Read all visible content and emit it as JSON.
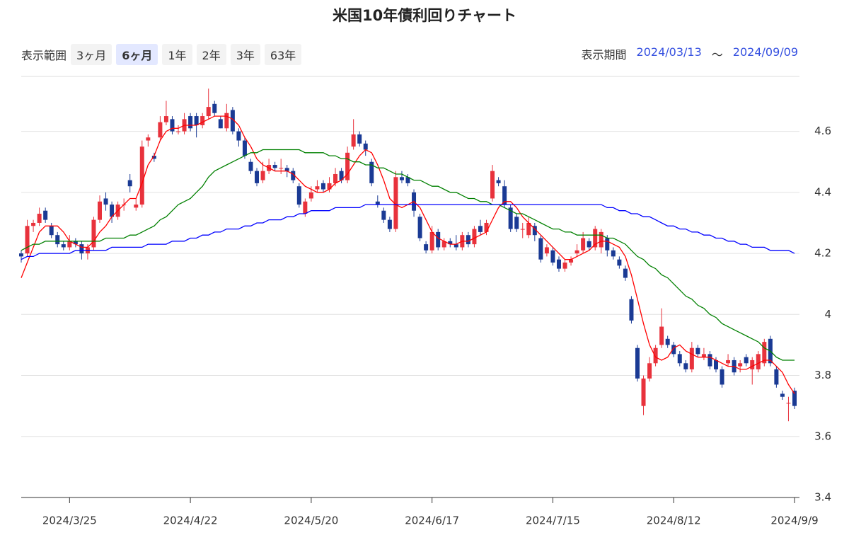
{
  "controls": {
    "range_label": "表示範囲",
    "ranges": [
      "3ヶ月",
      "6ヶ月",
      "1年",
      "2年",
      "3年",
      "63年"
    ],
    "active_range": 1,
    "period_label": "表示期間",
    "start": "2024/03/13",
    "separator": "～",
    "end": "2024/09/09"
  },
  "chart_data": {
    "type": "candlestick",
    "title": "米国10年債利回りチャート",
    "up_color": "#e8323c",
    "down_color": "#1a3a94",
    "ylim": [
      3.4,
      4.78
    ],
    "yticks": [
      3.4,
      3.6,
      3.8,
      4,
      4.2,
      4.4,
      4.6
    ],
    "grid": true,
    "categories": [
      null,
      null,
      null,
      null,
      null,
      null,
      null,
      null,
      "2024/3/25",
      null,
      null,
      null,
      null,
      null,
      null,
      null,
      null,
      null,
      null,
      null,
      null,
      null,
      null,
      null,
      null,
      null,
      null,
      null,
      "2024/4/22",
      null,
      null,
      null,
      null,
      null,
      null,
      null,
      null,
      null,
      null,
      null,
      null,
      null,
      null,
      null,
      null,
      null,
      null,
      null,
      "2024/5/20",
      null,
      null,
      null,
      null,
      null,
      null,
      null,
      null,
      null,
      null,
      null,
      null,
      null,
      null,
      null,
      null,
      null,
      null,
      null,
      "2024/6/17",
      null,
      null,
      null,
      null,
      null,
      null,
      null,
      null,
      null,
      null,
      null,
      null,
      null,
      null,
      null,
      null,
      null,
      null,
      null,
      "2024/7/15",
      null,
      null,
      null,
      null,
      null,
      null,
      null,
      null,
      null,
      null,
      null,
      null,
      null,
      null,
      null,
      null,
      null,
      null,
      null,
      "2024/8/12",
      null,
      null,
      null,
      null,
      null,
      null,
      null,
      null,
      null,
      null,
      null,
      null,
      null,
      null,
      null,
      null,
      null,
      null,
      null,
      "2024/9/9"
    ],
    "ohlc": [
      [
        4.2,
        4.21,
        4.17,
        4.19
      ],
      [
        4.2,
        4.31,
        4.19,
        4.29
      ],
      [
        4.29,
        4.31,
        4.27,
        4.3
      ],
      [
        4.3,
        4.35,
        4.29,
        4.33
      ],
      [
        4.34,
        4.35,
        4.3,
        4.31
      ],
      [
        4.29,
        4.3,
        4.25,
        4.26
      ],
      [
        4.26,
        4.27,
        4.22,
        4.23
      ],
      [
        4.23,
        4.24,
        4.21,
        4.22
      ],
      [
        4.22,
        4.26,
        4.21,
        4.24
      ],
      [
        4.24,
        4.25,
        4.22,
        4.23
      ],
      [
        4.23,
        4.24,
        4.18,
        4.2
      ],
      [
        4.2,
        4.23,
        4.18,
        4.22
      ],
      [
        4.22,
        4.32,
        4.21,
        4.31
      ],
      [
        4.31,
        4.39,
        4.3,
        4.37
      ],
      [
        4.38,
        4.4,
        4.34,
        4.36
      ],
      [
        4.36,
        4.37,
        4.3,
        4.32
      ],
      [
        4.32,
        4.37,
        4.31,
        4.36
      ],
      [
        4.36,
        4.38,
        4.34,
        4.36
      ],
      [
        4.44,
        4.46,
        4.4,
        4.42
      ],
      [
        4.35,
        4.38,
        4.34,
        4.36
      ],
      [
        4.36,
        4.57,
        4.35,
        4.55
      ],
      [
        4.57,
        4.59,
        4.55,
        4.58
      ],
      [
        4.52,
        4.53,
        4.5,
        4.51
      ],
      [
        4.58,
        4.65,
        4.57,
        4.63
      ],
      [
        4.63,
        4.7,
        4.62,
        4.65
      ],
      [
        4.64,
        4.65,
        4.59,
        4.6
      ],
      [
        4.6,
        4.62,
        4.59,
        4.6
      ],
      [
        4.6,
        4.66,
        4.59,
        4.64
      ],
      [
        4.65,
        4.66,
        4.6,
        4.61
      ],
      [
        4.65,
        4.66,
        4.58,
        4.62
      ],
      [
        4.62,
        4.66,
        4.61,
        4.65
      ],
      [
        4.65,
        4.74,
        4.64,
        4.68
      ],
      [
        4.69,
        4.7,
        4.65,
        4.66
      ],
      [
        4.64,
        4.65,
        4.61,
        4.61
      ],
      [
        4.61,
        4.69,
        4.6,
        4.66
      ],
      [
        4.67,
        4.68,
        4.59,
        4.6
      ],
      [
        4.6,
        4.61,
        4.55,
        4.57
      ],
      [
        4.57,
        4.58,
        4.51,
        4.52
      ],
      [
        4.5,
        4.51,
        4.46,
        4.47
      ],
      [
        4.47,
        4.48,
        4.42,
        4.43
      ],
      [
        4.44,
        4.5,
        4.43,
        4.47
      ],
      [
        4.47,
        4.51,
        4.46,
        4.49
      ],
      [
        4.49,
        4.5,
        4.47,
        4.48
      ],
      [
        4.48,
        4.51,
        4.46,
        4.48
      ],
      [
        4.48,
        4.49,
        4.45,
        4.47
      ],
      [
        4.47,
        4.48,
        4.43,
        4.44
      ],
      [
        4.42,
        4.43,
        4.35,
        4.36
      ],
      [
        4.33,
        4.38,
        4.32,
        4.37
      ],
      [
        4.38,
        4.42,
        4.37,
        4.4
      ],
      [
        4.41,
        4.44,
        4.4,
        4.42
      ],
      [
        4.43,
        4.44,
        4.4,
        4.41
      ],
      [
        4.41,
        4.45,
        4.4,
        4.43
      ],
      [
        4.43,
        4.48,
        4.42,
        4.46
      ],
      [
        4.47,
        4.48,
        4.43,
        4.44
      ],
      [
        4.44,
        4.55,
        4.43,
        4.53
      ],
      [
        4.55,
        4.64,
        4.54,
        4.59
      ],
      [
        4.59,
        4.6,
        4.55,
        4.56
      ],
      [
        4.56,
        4.57,
        4.52,
        4.54
      ],
      [
        4.5,
        4.51,
        4.42,
        4.43
      ],
      [
        4.37,
        4.39,
        4.35,
        4.36
      ],
      [
        4.34,
        4.35,
        4.3,
        4.31
      ],
      [
        4.31,
        4.32,
        4.27,
        4.28
      ],
      [
        4.28,
        4.47,
        4.27,
        4.45
      ],
      [
        4.45,
        4.47,
        4.43,
        4.44
      ],
      [
        4.45,
        4.46,
        4.42,
        4.43
      ],
      [
        4.4,
        4.41,
        4.32,
        4.34
      ],
      [
        4.32,
        4.33,
        4.24,
        4.25
      ],
      [
        4.23,
        4.24,
        4.2,
        4.21
      ],
      [
        4.21,
        4.29,
        4.2,
        4.27
      ],
      [
        4.27,
        4.28,
        4.21,
        4.22
      ],
      [
        4.22,
        4.25,
        4.21,
        4.24
      ],
      [
        4.24,
        4.25,
        4.22,
        4.23
      ],
      [
        4.23,
        4.26,
        4.21,
        4.22
      ],
      [
        4.22,
        4.27,
        4.21,
        4.26
      ],
      [
        4.26,
        4.27,
        4.22,
        4.23
      ],
      [
        4.23,
        4.29,
        4.22,
        4.28
      ],
      [
        4.29,
        4.31,
        4.26,
        4.27
      ],
      [
        4.27,
        4.31,
        4.26,
        4.3
      ],
      [
        4.38,
        4.49,
        4.37,
        4.47
      ],
      [
        4.44,
        4.45,
        4.42,
        4.43
      ],
      [
        4.42,
        4.44,
        4.35,
        4.36
      ],
      [
        4.35,
        4.36,
        4.27,
        4.28
      ],
      [
        4.32,
        4.33,
        4.27,
        4.28
      ],
      [
        4.28,
        4.3,
        4.25,
        4.28
      ],
      [
        4.26,
        4.32,
        4.25,
        4.3
      ],
      [
        4.29,
        4.3,
        4.24,
        4.26
      ],
      [
        4.25,
        4.26,
        4.17,
        4.18
      ],
      [
        4.2,
        4.23,
        4.19,
        4.22
      ],
      [
        4.21,
        4.22,
        4.16,
        4.17
      ],
      [
        4.18,
        4.19,
        4.14,
        4.15
      ],
      [
        4.15,
        4.18,
        4.14,
        4.17
      ],
      [
        4.17,
        4.19,
        4.16,
        4.18
      ],
      [
        4.2,
        4.23,
        4.19,
        4.21
      ],
      [
        4.21,
        4.27,
        4.2,
        4.25
      ],
      [
        4.24,
        4.25,
        4.21,
        4.22
      ],
      [
        4.22,
        4.29,
        4.21,
        4.28
      ],
      [
        4.22,
        4.28,
        4.2,
        4.27
      ],
      [
        4.25,
        4.26,
        4.19,
        4.21
      ],
      [
        4.21,
        4.22,
        4.18,
        4.19
      ],
      [
        4.18,
        4.19,
        4.15,
        4.16
      ],
      [
        4.15,
        4.16,
        4.11,
        4.12
      ],
      [
        4.05,
        4.06,
        3.97,
        3.98
      ],
      [
        3.89,
        3.9,
        3.78,
        3.79
      ],
      [
        3.7,
        3.8,
        3.67,
        3.79
      ],
      [
        3.79,
        3.86,
        3.78,
        3.84
      ],
      [
        3.84,
        3.9,
        3.83,
        3.89
      ],
      [
        3.9,
        4.02,
        3.89,
        3.96
      ],
      [
        3.92,
        3.93,
        3.89,
        3.9
      ],
      [
        3.9,
        3.91,
        3.86,
        3.87
      ],
      [
        3.87,
        3.88,
        3.83,
        3.84
      ],
      [
        3.84,
        3.85,
        3.81,
        3.82
      ],
      [
        3.82,
        3.91,
        3.81,
        3.89
      ],
      [
        3.89,
        3.9,
        3.86,
        3.87
      ],
      [
        3.86,
        3.89,
        3.85,
        3.87
      ],
      [
        3.87,
        3.88,
        3.82,
        3.83
      ],
      [
        3.85,
        3.86,
        3.81,
        3.82
      ],
      [
        3.82,
        3.83,
        3.76,
        3.77
      ],
      [
        3.84,
        3.87,
        3.83,
        3.85
      ],
      [
        3.85,
        3.86,
        3.8,
        3.81
      ],
      [
        3.83,
        3.85,
        3.81,
        3.84
      ],
      [
        3.86,
        3.87,
        3.83,
        3.84
      ],
      [
        3.82,
        3.86,
        3.77,
        3.85
      ],
      [
        3.82,
        3.88,
        3.81,
        3.87
      ],
      [
        3.84,
        3.92,
        3.83,
        3.91
      ],
      [
        3.92,
        3.93,
        3.83,
        3.84
      ],
      [
        3.82,
        3.83,
        3.76,
        3.77
      ],
      [
        3.74,
        3.75,
        3.72,
        3.73
      ],
      [
        3.71,
        3.73,
        3.65,
        3.71
      ],
      [
        3.75,
        3.76,
        3.69,
        3.7
      ]
    ],
    "series": [
      {
        "color": "#ff0000",
        "values": [
          4.12,
          4.17,
          4.22,
          4.27,
          4.29,
          4.29,
          4.29,
          4.27,
          4.24,
          4.23,
          4.22,
          4.22,
          4.24,
          4.27,
          4.29,
          4.32,
          4.34,
          4.36,
          4.38,
          4.38,
          4.43,
          4.49,
          4.52,
          4.57,
          4.6,
          4.61,
          4.61,
          4.62,
          4.62,
          4.62,
          4.63,
          4.64,
          4.65,
          4.65,
          4.65,
          4.64,
          4.62,
          4.58,
          4.55,
          4.51,
          4.49,
          4.48,
          4.47,
          4.47,
          4.47,
          4.46,
          4.44,
          4.42,
          4.41,
          4.4,
          4.4,
          4.41,
          4.43,
          4.44,
          4.46,
          4.49,
          4.52,
          4.54,
          4.53,
          4.49,
          4.44,
          4.38,
          4.36,
          4.35,
          4.36,
          4.37,
          4.35,
          4.31,
          4.27,
          4.25,
          4.24,
          4.23,
          4.23,
          4.24,
          4.24,
          4.25,
          4.26,
          4.27,
          4.31,
          4.35,
          4.37,
          4.37,
          4.35,
          4.32,
          4.3,
          4.28,
          4.26,
          4.24,
          4.22,
          4.2,
          4.18,
          4.18,
          4.19,
          4.2,
          4.21,
          4.23,
          4.24,
          4.24,
          4.23,
          4.22,
          4.19,
          4.13,
          4.05,
          3.97,
          3.9,
          3.86,
          3.85,
          3.86,
          3.89,
          3.9,
          3.88,
          3.87,
          3.86,
          3.86,
          3.86,
          3.85,
          3.84,
          3.83,
          3.83,
          3.82,
          3.82,
          3.83,
          3.84,
          3.85,
          3.85,
          3.83,
          3.81,
          3.77,
          3.74
        ]
      },
      {
        "color": "#008000",
        "values": [
          4.21,
          4.22,
          4.23,
          4.23,
          4.24,
          4.24,
          4.24,
          4.24,
          4.24,
          4.24,
          4.24,
          4.24,
          4.24,
          4.24,
          4.25,
          4.25,
          4.25,
          4.25,
          4.26,
          4.26,
          4.27,
          4.28,
          4.29,
          4.31,
          4.32,
          4.34,
          4.36,
          4.37,
          4.38,
          4.4,
          4.42,
          4.45,
          4.47,
          4.48,
          4.49,
          4.5,
          4.51,
          4.52,
          4.53,
          4.53,
          4.54,
          4.54,
          4.54,
          4.54,
          4.54,
          4.54,
          4.54,
          4.53,
          4.53,
          4.53,
          4.53,
          4.52,
          4.52,
          4.51,
          4.51,
          4.5,
          4.5,
          4.49,
          4.49,
          4.48,
          4.48,
          4.47,
          4.46,
          4.46,
          4.45,
          4.44,
          4.44,
          4.43,
          4.42,
          4.42,
          4.41,
          4.4,
          4.4,
          4.39,
          4.38,
          4.38,
          4.37,
          4.37,
          4.36,
          4.36,
          4.35,
          4.34,
          4.33,
          4.33,
          4.32,
          4.31,
          4.3,
          4.29,
          4.28,
          4.28,
          4.27,
          4.27,
          4.26,
          4.26,
          4.26,
          4.26,
          4.26,
          4.25,
          4.25,
          4.24,
          4.23,
          4.21,
          4.19,
          4.18,
          4.16,
          4.15,
          4.13,
          4.12,
          4.1,
          4.08,
          4.06,
          4.05,
          4.03,
          4.02,
          4.0,
          3.99,
          3.97,
          3.96,
          3.95,
          3.94,
          3.93,
          3.92,
          3.91,
          3.89,
          3.88,
          3.86,
          3.85,
          3.85,
          3.85
        ]
      },
      {
        "color": "#0000ff",
        "values": [
          4.18,
          4.19,
          4.19,
          4.2,
          4.2,
          4.2,
          4.2,
          4.2,
          4.2,
          4.21,
          4.21,
          4.21,
          4.21,
          4.21,
          4.21,
          4.22,
          4.22,
          4.22,
          4.22,
          4.22,
          4.22,
          4.23,
          4.23,
          4.23,
          4.23,
          4.24,
          4.24,
          4.24,
          4.25,
          4.25,
          4.26,
          4.26,
          4.27,
          4.27,
          4.28,
          4.28,
          4.28,
          4.29,
          4.29,
          4.3,
          4.3,
          4.31,
          4.31,
          4.31,
          4.32,
          4.32,
          4.33,
          4.33,
          4.34,
          4.34,
          4.34,
          4.34,
          4.35,
          4.35,
          4.35,
          4.35,
          4.35,
          4.36,
          4.36,
          4.36,
          4.36,
          4.36,
          4.36,
          4.36,
          4.36,
          4.36,
          4.36,
          4.36,
          4.36,
          4.36,
          4.36,
          4.36,
          4.36,
          4.36,
          4.36,
          4.36,
          4.36,
          4.36,
          4.36,
          4.36,
          4.36,
          4.36,
          4.36,
          4.36,
          4.36,
          4.36,
          4.36,
          4.36,
          4.36,
          4.36,
          4.36,
          4.36,
          4.36,
          4.36,
          4.36,
          4.36,
          4.36,
          4.35,
          4.35,
          4.34,
          4.34,
          4.33,
          4.33,
          4.32,
          4.32,
          4.31,
          4.3,
          4.29,
          4.29,
          4.28,
          4.28,
          4.27,
          4.27,
          4.26,
          4.26,
          4.25,
          4.25,
          4.24,
          4.24,
          4.23,
          4.23,
          4.22,
          4.22,
          4.22,
          4.21,
          4.21,
          4.21,
          4.21,
          4.2
        ]
      }
    ]
  }
}
